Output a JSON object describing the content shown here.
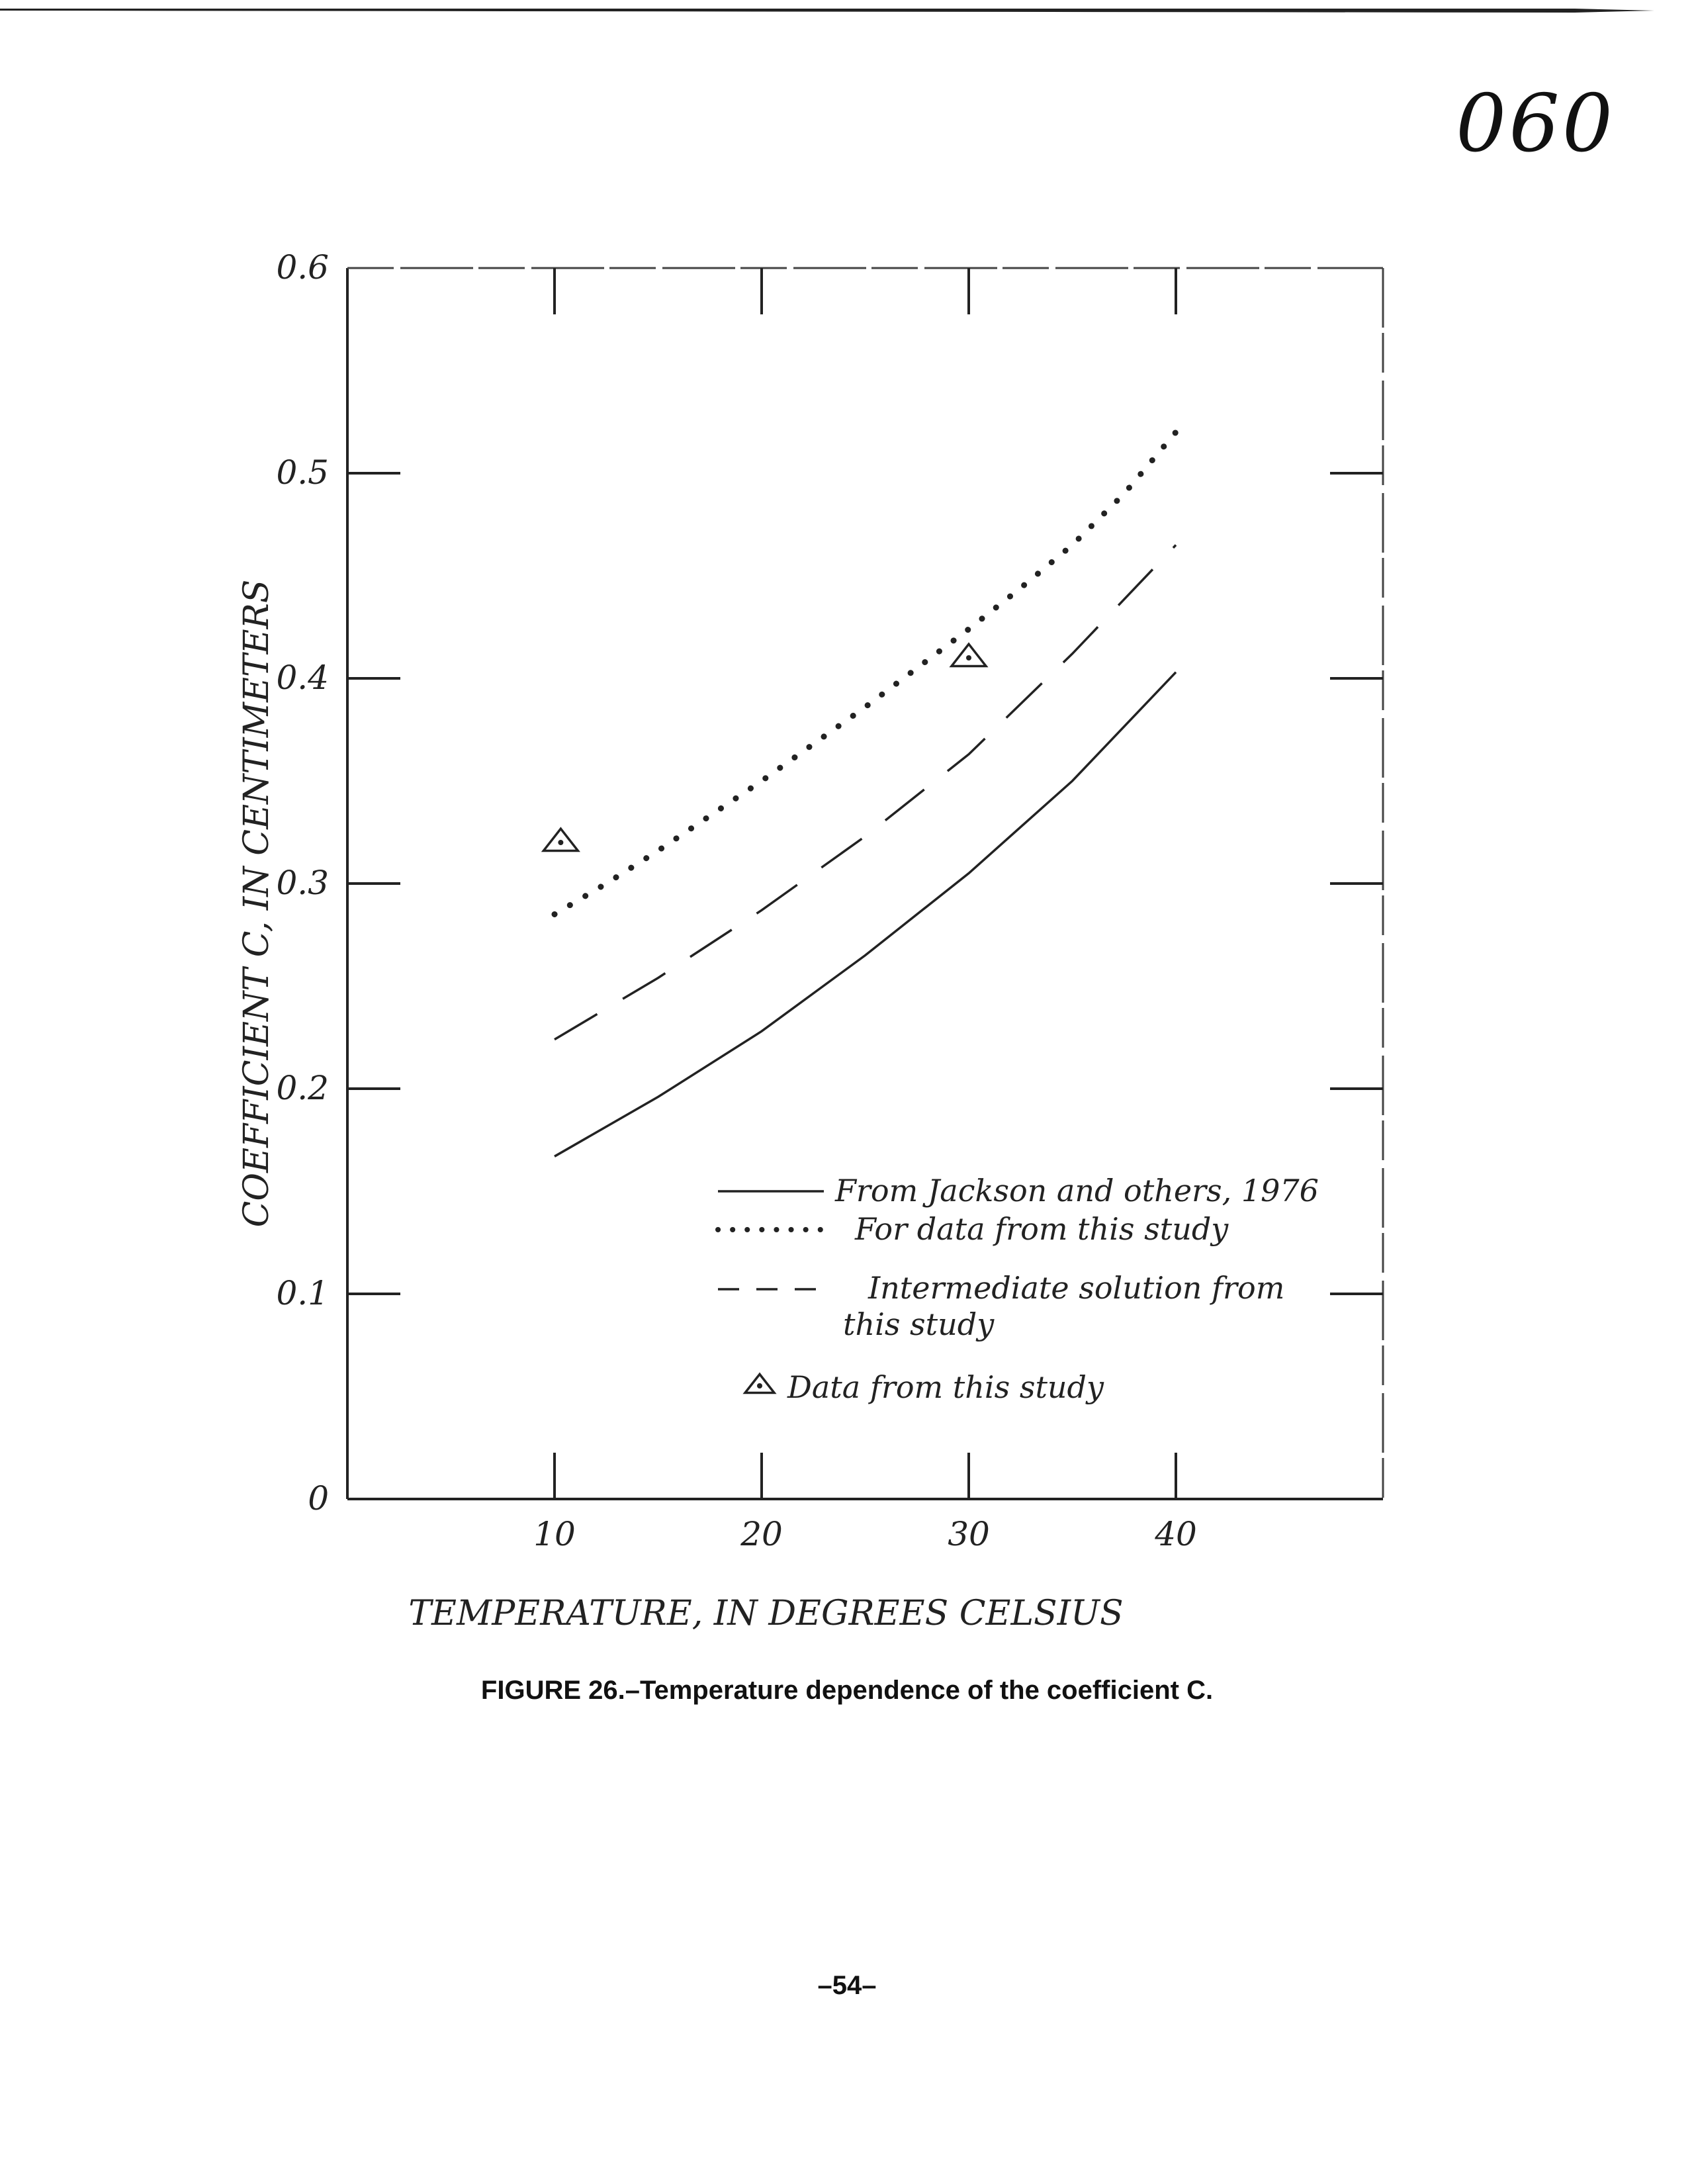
{
  "page": {
    "stamp": "060",
    "caption": "FIGURE 26.–Temperature dependence of the coefficient C.",
    "footer": "–54–"
  },
  "chart_data": {
    "type": "line",
    "xlabel": "TEMPERATURE, IN DEGREES CELSIUS",
    "ylabel": "COEFFICIENT C, IN CENTIMETERS",
    "xlim": [
      0,
      50
    ],
    "ylim": [
      0,
      0.6
    ],
    "x_ticks": [
      10,
      20,
      30,
      40
    ],
    "x_tick_labels": [
      "10",
      "20",
      "30",
      "40"
    ],
    "y_ticks": [
      0,
      0.1,
      0.2,
      0.3,
      0.4,
      0.5,
      0.6
    ],
    "y_tick_labels": [
      "0",
      "0.1",
      "0.2",
      "0.3",
      "0.4",
      "0.5",
      "0.6"
    ],
    "grid": false,
    "legend_position": "lower-right",
    "series": [
      {
        "name": "From Jackson and others, 1976",
        "style": "solid",
        "x": [
          10,
          15,
          20,
          25,
          30,
          35,
          40
        ],
        "y": [
          0.167,
          0.196,
          0.228,
          0.265,
          0.305,
          0.35,
          0.403
        ]
      },
      {
        "name": "For data from this study",
        "style": "dotted",
        "x": [
          10,
          12.5,
          15,
          17.5,
          20,
          22.5,
          25,
          27.5,
          30,
          32.5,
          35,
          37.5,
          40
        ],
        "y": [
          0.285,
          0.3,
          0.316,
          0.333,
          0.35,
          0.368,
          0.386,
          0.405,
          0.424,
          0.444,
          0.465,
          0.49,
          0.52
        ]
      },
      {
        "name": "Intermediate solution from this study",
        "style": "dashed",
        "x": [
          10,
          15,
          20,
          25,
          30,
          35,
          40
        ],
        "y": [
          0.224,
          0.254,
          0.287,
          0.323,
          0.363,
          0.412,
          0.465
        ]
      },
      {
        "name": "Data from this study",
        "style": "triangle-marker",
        "x": [
          10.3,
          30
        ],
        "y": [
          0.32,
          0.41
        ]
      }
    ],
    "legend_labels": [
      "From Jackson and others, 1976",
      "For data from this study",
      "Intermediate solution from\nthis study",
      "Data from this study"
    ]
  }
}
